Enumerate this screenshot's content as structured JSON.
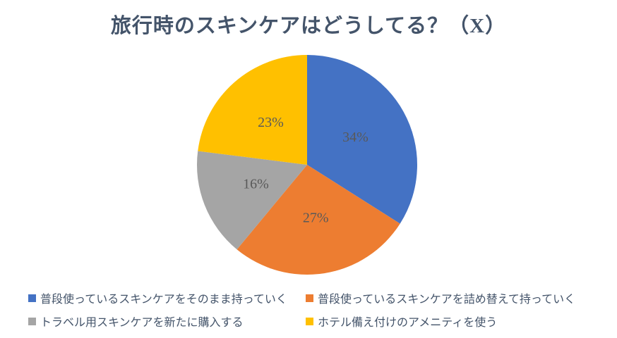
{
  "chart_data": {
    "type": "pie",
    "title": "旅行時のスキンケアはどうしてる？（X）",
    "legend_position": "bottom",
    "start_angle_deg": 0,
    "direction": "clockwise",
    "grid": false,
    "slices": [
      {
        "label": "普段使っているスキンケアをそのまま持っていく",
        "value": 34,
        "display": "34%",
        "color": "#4472C4"
      },
      {
        "label": "普段使っているスキンケアを詰め替えて持っていく",
        "value": 27,
        "display": "27%",
        "color": "#ED7D31"
      },
      {
        "label": "トラベル用スキンケアを新たに購入する",
        "value": 16,
        "display": "16%",
        "color": "#A5A5A5"
      },
      {
        "label": "ホテル備え付けのアメニティを使う",
        "value": 23,
        "display": "23%",
        "color": "#FFC000"
      }
    ],
    "colors": {
      "title": "#44546A",
      "legend_text": "#44546A",
      "slice_label": "#595959",
      "background": "#FFFFFF"
    }
  }
}
